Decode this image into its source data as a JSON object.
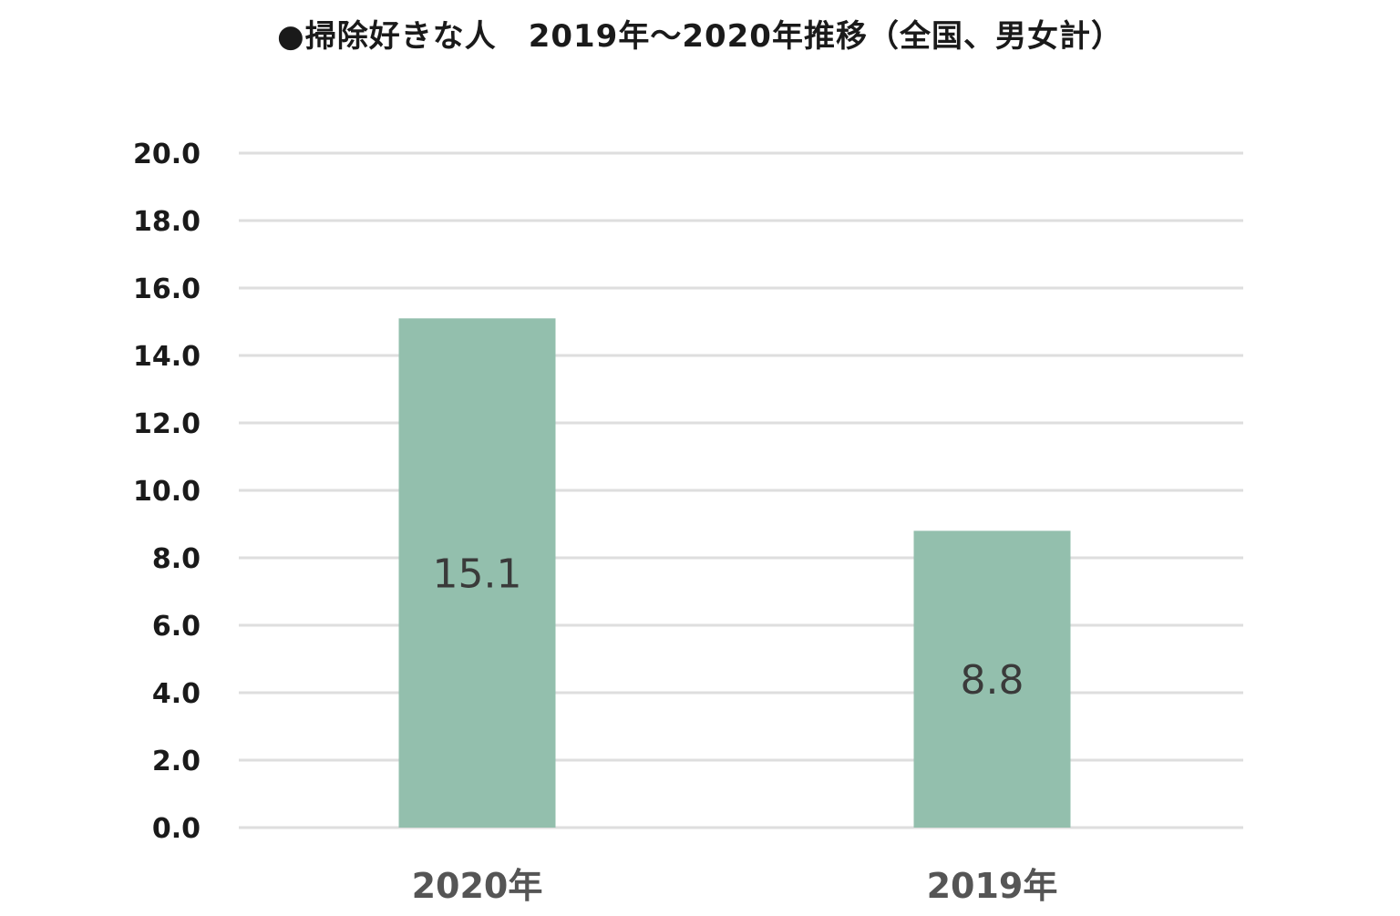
{
  "chart_data": {
    "type": "bar",
    "title": "●掃除好きな人　2019年～2020年推移（全国、男女計）",
    "categories": [
      "2020年",
      "2019年"
    ],
    "values": [
      15.1,
      8.8
    ],
    "data_labels": [
      "15.1",
      "8.8"
    ],
    "ylim": [
      0,
      20
    ],
    "yticks": [
      "0.0",
      "2.0",
      "4.0",
      "6.0",
      "8.0",
      "10.0",
      "12.0",
      "14.0",
      "16.0",
      "18.0",
      "20.0"
    ],
    "xlabel": "",
    "ylabel": "",
    "grid": true,
    "legend": "none",
    "colors": {
      "bar": "#93bfad",
      "gridline": "#dedede",
      "text": "#1a1a1a",
      "category_text": "#555555"
    }
  }
}
